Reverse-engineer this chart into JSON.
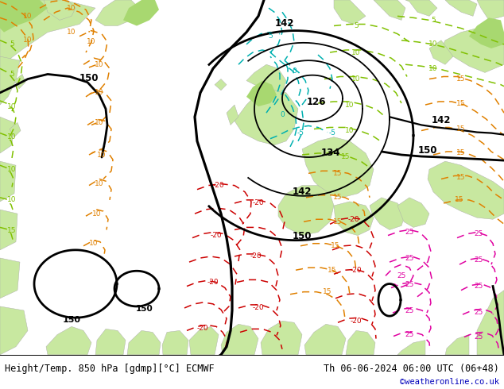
{
  "title_left": "Height/Temp. 850 hPa [gdmp][°C] ECMWF",
  "title_right": "Th 06-06-2024 06:00 UTC (06+48)",
  "credit": "©weatheronline.co.uk",
  "fig_width": 6.34,
  "fig_height": 4.9,
  "dpi": 100,
  "bg_color": "#ffffff",
  "ocean_color": "#d8d8d8",
  "land_green_light": "#c8e8a0",
  "land_green_dark": "#a8d870",
  "text_color": "#000000",
  "credit_color": "#0000bb",
  "label_fontsize": 8.5,
  "credit_fontsize": 7.5,
  "black_lw": 2.0,
  "temp_lw": 1.1,
  "colors": {
    "cyan": "#00b0b0",
    "green": "#80c000",
    "orange": "#e08000",
    "red": "#cc0000",
    "pink": "#e000a0"
  },
  "map_xlim": [
    0,
    634
  ],
  "map_ylim": [
    0,
    440
  ]
}
